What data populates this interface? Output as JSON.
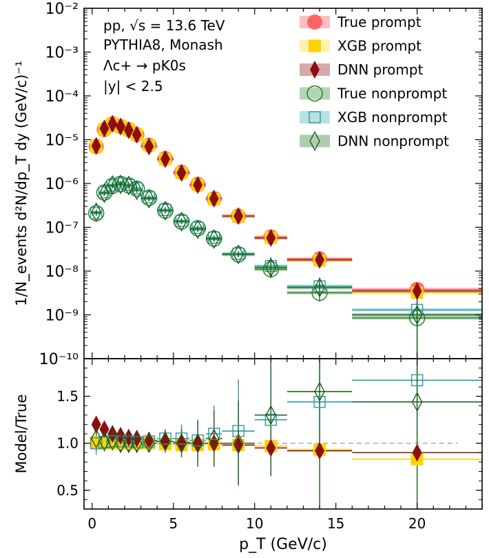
{
  "chart_data": {
    "type": "scatter",
    "x_label": "p_T (GeV/c)",
    "x_ticks": [
      "0",
      "5",
      "10",
      "15",
      "20"
    ],
    "xlim": [
      -0.5,
      24
    ],
    "annotation": [
      "pp, √s = 13.6 TeV",
      "PYTHIA8, Monash",
      "Λc+ → pK0s",
      "|y| < 2.5"
    ],
    "top_panel": {
      "y_label": "1/N_events d²N/dp_T dy (GeV/c)⁻¹",
      "y_scale": "log",
      "ylim": [
        1e-10,
        0.01
      ],
      "y_ticks": [
        "10⁻¹⁰",
        "10⁻⁹",
        "10⁻⁸",
        "10⁻⁷",
        "10⁻⁶",
        "10⁻⁵",
        "10⁻⁴",
        "10⁻³",
        "10⁻²"
      ],
      "legend_placement": "top-right",
      "bins": [
        {
          "x": 0.25,
          "w": 0.25
        },
        {
          "x": 0.75,
          "w": 0.25
        },
        {
          "x": 1.25,
          "w": 0.25
        },
        {
          "x": 1.75,
          "w": 0.25
        },
        {
          "x": 2.25,
          "w": 0.25
        },
        {
          "x": 2.75,
          "w": 0.25
        },
        {
          "x": 3.5,
          "w": 0.5
        },
        {
          "x": 4.5,
          "w": 0.5
        },
        {
          "x": 5.5,
          "w": 0.5
        },
        {
          "x": 6.5,
          "w": 0.5
        },
        {
          "x": 7.5,
          "w": 0.5
        },
        {
          "x": 9,
          "w": 1
        },
        {
          "x": 11,
          "w": 1
        },
        {
          "x": 14,
          "w": 2
        },
        {
          "x": 20,
          "w": 4
        }
      ],
      "series": [
        {
          "name": "True prompt",
          "marker": "circle-filled",
          "color": "#ff5a5a",
          "band": "#ffb3b8",
          "values": [
            7e-06,
            1.7e-05,
            2.3e-05,
            2e-05,
            1.7e-05,
            1.3e-05,
            7.5e-06,
            3.7e-06,
            1.8e-06,
            9.5e-07,
            4.5e-07,
            1.8e-07,
            6e-08,
            1.9e-08,
            3.8e-09
          ]
        },
        {
          "name": "XGB prompt",
          "marker": "square-filled",
          "color": "#ffd200",
          "band": "#fff0a0",
          "values": [
            7e-06,
            1.7e-05,
            2.3e-05,
            2e-05,
            1.7e-05,
            1.3e-05,
            7.5e-06,
            3.6e-06,
            1.75e-06,
            9.3e-07,
            4.4e-07,
            1.75e-07,
            5.8e-08,
            1.75e-08,
            3.2e-09
          ]
        },
        {
          "name": "DNN prompt",
          "marker": "diamond-filled",
          "color": "#8b0f0f",
          "band": "#d09a9a",
          "values": [
            7.2e-06,
            1.8e-05,
            2.3e-05,
            2e-05,
            1.65e-05,
            1.3e-05,
            7e-06,
            3.6e-06,
            1.75e-06,
            9.2e-07,
            4.5e-07,
            1.8e-07,
            5.7e-08,
            1.8e-08,
            3.5e-09
          ]
        },
        {
          "name": "True nonprompt",
          "marker": "circle-open",
          "color": "#1c7a1c",
          "band": "#a8cca8",
          "values": [
            2.1e-07,
            6.2e-07,
            8.8e-07,
            9.8e-07,
            9e-07,
            7.6e-07,
            4.7e-07,
            2.4e-07,
            1.35e-07,
            9.5e-08,
            5.5e-08,
            2.4e-08,
            1.1e-08,
            3.2e-09,
            8.5e-10
          ]
        },
        {
          "name": "XGB nonprompt",
          "marker": "square-open",
          "color": "#2a9a9a",
          "band": "#aadddd",
          "values": [
            2.1e-07,
            6.3e-07,
            9e-07,
            1e-06,
            9.2e-07,
            7.7e-07,
            4.8e-07,
            2.5e-07,
            1.4e-07,
            9.7e-08,
            5.8e-08,
            2.5e-08,
            1.3e-08,
            4.5e-09,
            1.3e-09
          ]
        },
        {
          "name": "DNN nonprompt",
          "marker": "diamond-open",
          "color": "#1c5c1c",
          "band": "#a0c4a0",
          "values": [
            2.2e-07,
            6e-07,
            9.2e-07,
            9.5e-07,
            9e-07,
            7e-07,
            4.5e-07,
            2.4e-07,
            1.35e-07,
            9e-08,
            5.4e-08,
            2.4e-08,
            1.2e-08,
            4.2e-09,
            1e-09
          ]
        }
      ]
    },
    "bottom_panel": {
      "y_label": "Model/True",
      "ylim": [
        0.3,
        1.9
      ],
      "y_ticks": [
        "0.5",
        "1.0",
        "1.5"
      ],
      "reference_line": 1.0,
      "series": [
        {
          "name": "XGB prompt",
          "marker": "square-filled",
          "color": "#ffd200",
          "values": [
            1.01,
            1.0,
            1.0,
            1.0,
            1.0,
            1.0,
            1.0,
            0.99,
            0.98,
            0.98,
            0.99,
            0.98,
            0.97,
            0.93,
            0.83
          ],
          "errors": [
            0.02,
            0.02,
            0.02,
            0.02,
            0.02,
            0.02,
            0.02,
            0.02,
            0.02,
            0.02,
            0.02,
            0.02,
            0.02,
            0.02,
            0.02
          ]
        },
        {
          "name": "DNN prompt",
          "marker": "diamond-filled",
          "color": "#8b0f0f",
          "values": [
            1.2,
            1.15,
            1.1,
            1.08,
            1.06,
            1.05,
            1.03,
            1.02,
            1.01,
            1.0,
            1.0,
            0.98,
            0.95,
            0.92,
            0.9
          ],
          "errors": [
            0.03,
            0.03,
            0.03,
            0.03,
            0.03,
            0.03,
            0.03,
            0.03,
            0.03,
            0.03,
            0.03,
            0.03,
            0.03,
            0.03,
            0.03
          ]
        },
        {
          "name": "XGB nonprompt",
          "marker": "square-open",
          "color": "#2a9a9a",
          "values": [
            1.0,
            1.01,
            1.02,
            1.02,
            1.02,
            1.01,
            1.02,
            1.05,
            1.05,
            1.03,
            1.1,
            1.13,
            1.25,
            1.44,
            1.67
          ],
          "errors": [
            0.12,
            0.1,
            0.1,
            0.1,
            0.1,
            0.1,
            0.1,
            0.1,
            0.15,
            0.2,
            0.3,
            0.55,
            0.6,
            0.6,
            0.6
          ]
        },
        {
          "name": "DNN nonprompt",
          "marker": "diamond-open",
          "color": "#1c5c1c",
          "values": [
            1.05,
            1.02,
            1.03,
            1.0,
            1.0,
            1.0,
            1.0,
            1.02,
            1.0,
            1.0,
            1.05,
            1.0,
            1.3,
            1.55,
            1.44
          ],
          "errors": [
            0.12,
            0.1,
            0.1,
            0.1,
            0.1,
            0.1,
            0.1,
            0.12,
            0.15,
            0.25,
            0.3,
            0.45,
            0.65,
            1.3,
            1.5
          ]
        }
      ]
    }
  }
}
